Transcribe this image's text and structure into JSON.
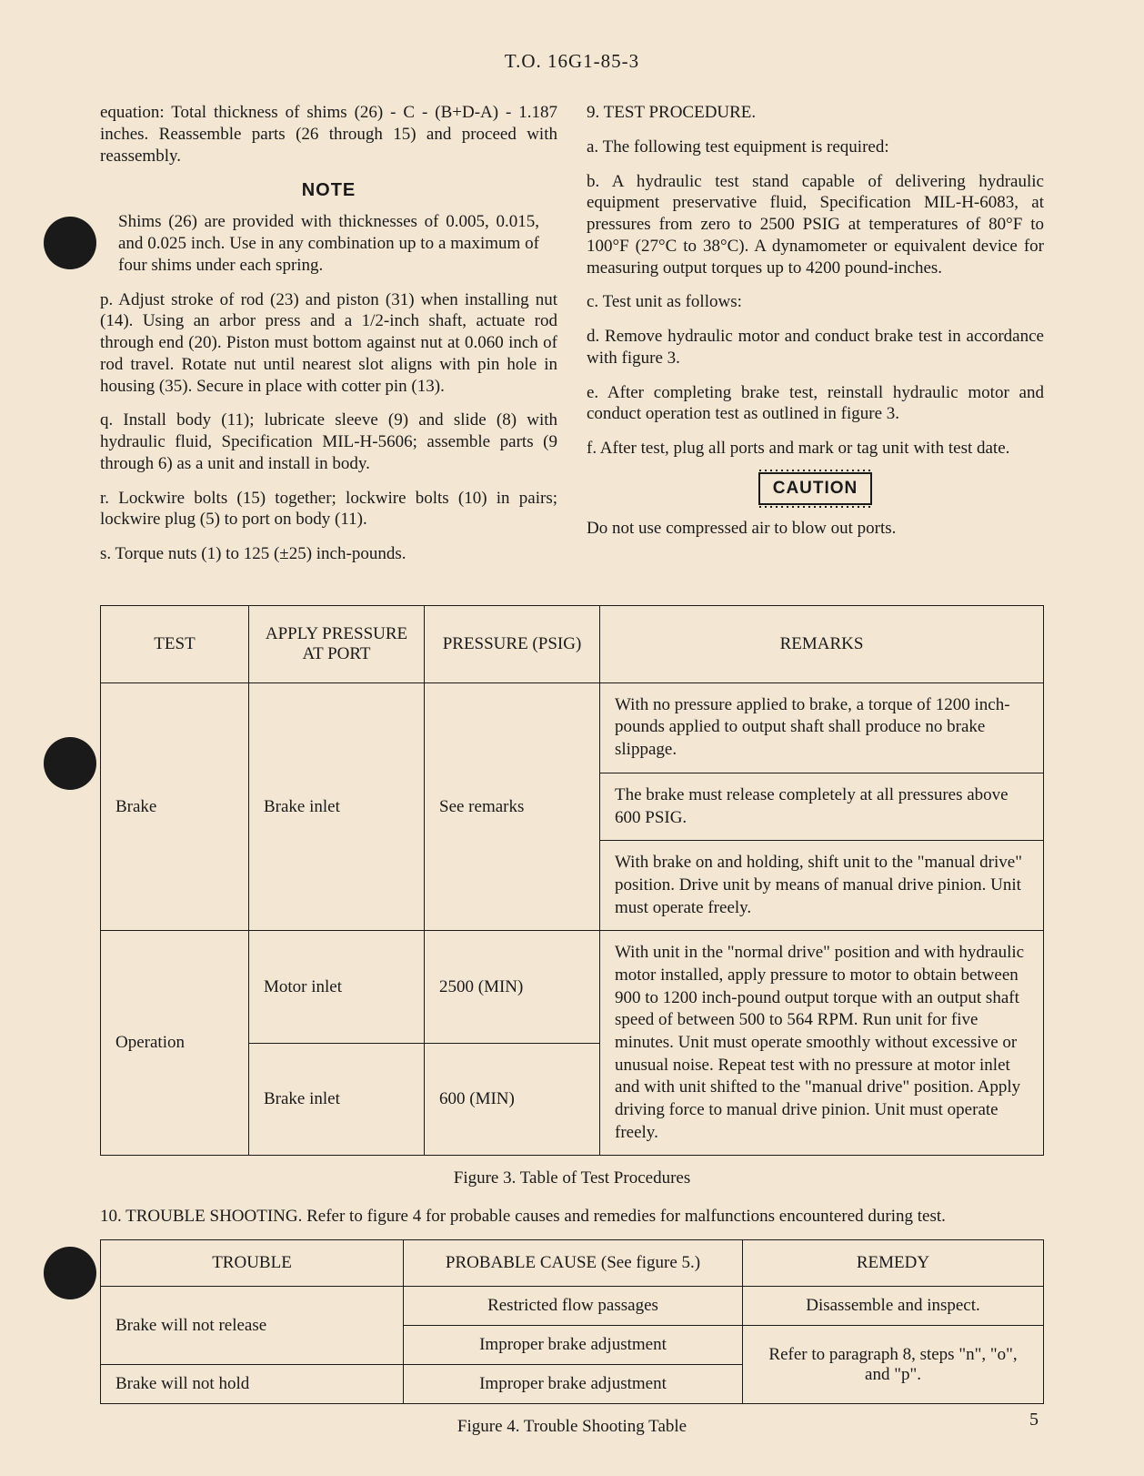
{
  "header": "T.O. 16G1-85-3",
  "left": {
    "p1": "equation: Total thickness of shims (26) - C - (B+D-A) - 1.187 inches. Reassemble parts (26 through 15) and proceed with reassembly.",
    "note_hdr": "NOTE",
    "note_body": "Shims (26) are provided with thicknesses of 0.005, 0.015, and 0.025 inch. Use in any combination up to a maximum of four shims under each spring.",
    "p_p": "p.  Adjust stroke of rod (23) and piston (31) when installing nut (14). Using an arbor press and a 1/2-inch shaft, actuate rod through end (20). Piston must bottom against nut at 0.060 inch of rod travel. Rotate nut until nearest slot aligns with pin hole in housing (35). Secure in place with cotter pin (13).",
    "p_q": "q.  Install body (11); lubricate sleeve (9) and slide (8) with hydraulic fluid, Specification MIL-H-5606; assemble parts (9 through 6) as a unit and install in body.",
    "p_r": "r.  Lockwire bolts (15) together; lockwire bolts (10) in pairs; lockwire plug (5) to port on body (11).",
    "p_s": "s.  Torque nuts (1) to 125 (±25) inch-pounds."
  },
  "right": {
    "h9": "9.  TEST PROCEDURE.",
    "a": "a.  The following test equipment is required:",
    "b": "b.  A hydraulic test stand capable of delivering hydraulic equipment preservative fluid, Specification MIL-H-6083, at pressures from zero to 2500 PSIG at temperatures of 80°F to 100°F (27°C to 38°C). A dynamometer or equivalent device for measuring output torques up to 4200 pound-inches.",
    "c": "c.  Test unit as follows:",
    "d": "d.  Remove hydraulic motor and conduct brake test in accordance with figure 3.",
    "e": "e.  After completing brake test, reinstall hydraulic motor and conduct operation test as outlined in figure 3.",
    "f": "f.  After test, plug all ports and mark or tag unit with test date.",
    "caution": "CAUTION",
    "caution_body": "Do not use compressed air to blow out ports."
  },
  "fig3": {
    "headers": [
      "TEST",
      "APPLY PRESSURE AT PORT",
      "PRESSURE (PSIG)",
      "REMARKS"
    ],
    "brake_test": "Brake",
    "brake_port": "Brake inlet",
    "brake_press": "See remarks",
    "brake_r1": "With no pressure applied to brake, a torque of 1200 inch-pounds applied to output shaft shall produce no brake slippage.",
    "brake_r2": "The brake must release completely at all pressures above 600 PSIG.",
    "brake_r3": "With brake on and holding, shift unit to the \"manual drive\" position. Drive unit by means of manual drive pinion. Unit must operate freely.",
    "op_test": "Operation",
    "op_port1": "Motor inlet",
    "op_press1": "2500 (MIN)",
    "op_port2": "Brake inlet",
    "op_press2": "600 (MIN)",
    "op_r": "With unit in the \"normal drive\" position and with hydraulic motor installed, apply pressure to motor to obtain between 900 to 1200 inch-pound output torque with an output shaft speed of between 500 to 564 RPM. Run unit for five minutes. Unit must operate smoothly without excessive or unusual noise. Repeat test with no pressure at motor inlet and with unit shifted to the \"manual drive\" position. Apply driving force to manual drive pinion. Unit must operate freely.",
    "caption": "Figure 3.  Table of Test Procedures"
  },
  "sec10": "10.  TROUBLE SHOOTING. Refer to figure 4 for probable causes and remedies for malfunctions encountered during test.",
  "fig4": {
    "headers": [
      "TROUBLE",
      "PROBABLE CAUSE (See figure 5.)",
      "REMEDY"
    ],
    "t1": "Brake will not release",
    "c1": "Restricted flow passages",
    "r1": "Disassemble and inspect.",
    "c2": "Improper brake adjustment",
    "t2": "Brake will not hold",
    "c3": "Improper brake adjustment",
    "r2": "Refer to paragraph 8, steps \"n\", \"o\", and \"p\".",
    "caption": "Figure 4.  Trouble Shooting Table"
  },
  "pagenum": "5"
}
